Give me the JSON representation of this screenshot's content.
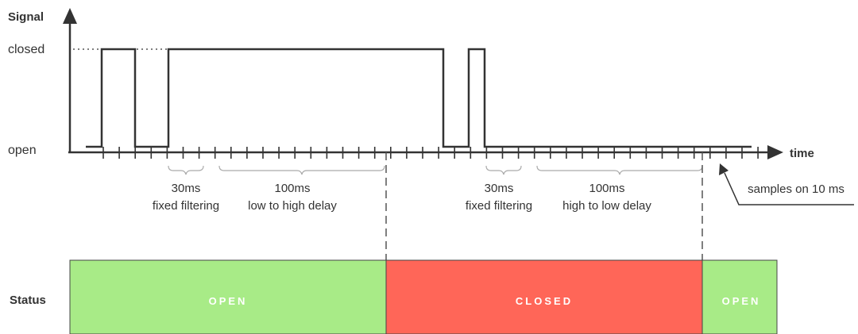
{
  "axes": {
    "y_title": "Signal",
    "x_title": "time",
    "level_high": "closed",
    "level_low": "open",
    "status_title": "Status"
  },
  "annotations": {
    "filter_1_value": "30ms",
    "filter_1_text": "fixed filtering",
    "delay_1_value": "100ms",
    "delay_1_text": "low to high delay",
    "filter_2_value": "30ms",
    "filter_2_text": "fixed filtering",
    "delay_2_value": "100ms",
    "delay_2_text": "high to low delay",
    "sampling": "samples on 10 ms"
  },
  "status": [
    {
      "label": "OPEN",
      "color": "#a8eb87"
    },
    {
      "label": "CLOSED",
      "color": "#ff6658"
    },
    {
      "label": "OPEN",
      "color": "#a8eb87"
    }
  ],
  "colors": {
    "line": "#333333",
    "bracket": "#aaaaaa"
  }
}
